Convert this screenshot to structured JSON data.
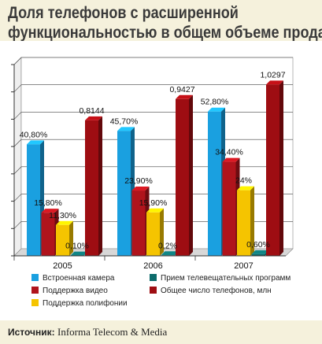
{
  "title_line1": "Доля телефонов с расширенной",
  "title_line2": "функциональностью в общем объеме продаж",
  "source_label": "Источник:",
  "source_text": "Informa Telecom & Media",
  "chart_data": {
    "type": "bar",
    "categories": [
      "2005",
      "2006",
      "2007"
    ],
    "series": [
      {
        "name": "Встроенная камера",
        "color": "#1aa0e0",
        "values": [
          40.8,
          45.7,
          52.8
        ],
        "labels": [
          "40,80%",
          "45,70%",
          "52,80%"
        ],
        "axis": "percent"
      },
      {
        "name": "Поддержка видео",
        "color": "#b0141c",
        "values": [
          15.8,
          23.9,
          34.4
        ],
        "labels": [
          "15,80%",
          "23,90%",
          "34,40%"
        ],
        "axis": "percent"
      },
      {
        "name": "Поддержка полифонии",
        "color": "#f5c400",
        "values": [
          11.3,
          15.9,
          24
        ],
        "labels": [
          "11,30%",
          "15,90%",
          "24%"
        ],
        "axis": "percent"
      },
      {
        "name": "Прием телевещательных программ",
        "color": "#0d6b6b",
        "values": [
          0.1,
          0.2,
          0.6
        ],
        "labels": [
          "0,10%",
          "0,2%",
          "0,60%"
        ],
        "axis": "percent"
      },
      {
        "name": "Общее число телефонов, млн",
        "color": "#9e0d12",
        "values": [
          0.8144,
          0.9427,
          1.0297
        ],
        "labels": [
          "0,8144",
          "0,9427",
          "1,0297"
        ],
        "axis": "millions"
      }
    ],
    "legend_position": "bottom",
    "grid": true
  }
}
